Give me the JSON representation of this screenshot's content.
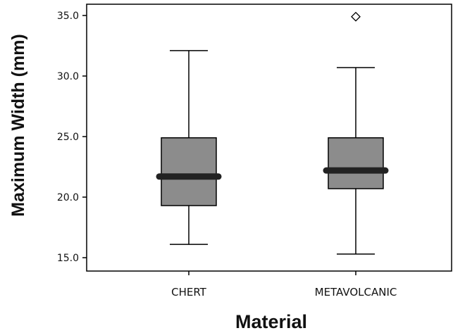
{
  "chart_data": {
    "type": "box",
    "xlabel": "Material",
    "ylabel": "Maximum Width (mm)",
    "categories": [
      "CHERT",
      "METAVOLCANIC"
    ],
    "ylim": [
      14.0,
      36.0
    ],
    "yticks": [
      15.0,
      20.0,
      25.0,
      30.0,
      35.0
    ],
    "ytick_labels": [
      "15.0",
      "20.0",
      "25.0",
      "30.0",
      "35.0"
    ],
    "boxes": [
      {
        "category": "CHERT",
        "min": 16.1,
        "q1": 19.3,
        "median": 21.7,
        "q3": 24.9,
        "max": 32.1,
        "outliers": []
      },
      {
        "category": "METAVOLCANIC",
        "min": 15.3,
        "q1": 20.7,
        "median": 22.2,
        "q3": 24.9,
        "max": 30.7,
        "outliers": [
          34.9
        ]
      }
    ],
    "grid": false,
    "colors": {
      "box_fill": "#8c8c8c",
      "median": "#222222",
      "line": "#000000",
      "background": "#ffffff"
    }
  }
}
